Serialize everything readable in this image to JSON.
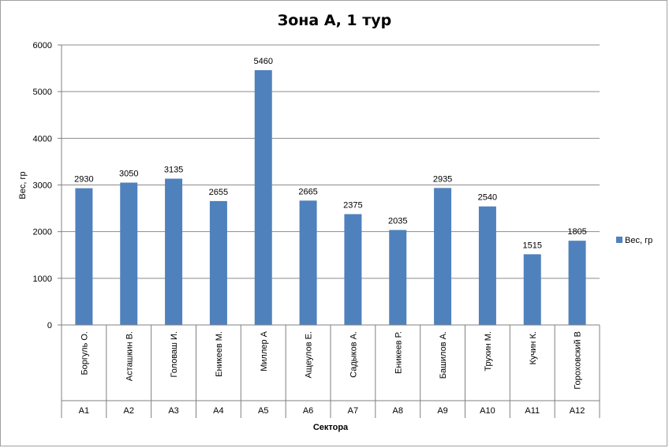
{
  "chart_data": {
    "type": "bar",
    "title": "Зона А, 1 тур",
    "xlabel": "Сектора",
    "ylabel": "Вес, гр",
    "ylim": [
      0,
      6000
    ],
    "yticks": [
      0,
      1000,
      2000,
      3000,
      4000,
      5000,
      6000
    ],
    "grid": true,
    "legend_position": "right",
    "categories": [
      "Боргуль О.",
      "Асташкин В.",
      "Головаш И.",
      "Еникеев М.",
      "Миллер А",
      "Ащеулов Е.",
      "Садыков А.",
      "Еникеев Р.",
      "Башилов А.",
      "Трухин М.",
      "Кучин К.",
      "Гороховский В"
    ],
    "sectors": [
      "А1",
      "А2",
      "А3",
      "А4",
      "А5",
      "А6",
      "А7",
      "А8",
      "А9",
      "А10",
      "А11",
      "А12"
    ],
    "series": [
      {
        "name": "Вес, гр",
        "values": [
          2930,
          3050,
          3135,
          2655,
          5460,
          2665,
          2375,
          2035,
          2935,
          2540,
          1515,
          1805
        ]
      }
    ],
    "colors": {
      "bar": "#4f81bd",
      "grid": "#8c8c8c",
      "axis": "#808080"
    }
  }
}
